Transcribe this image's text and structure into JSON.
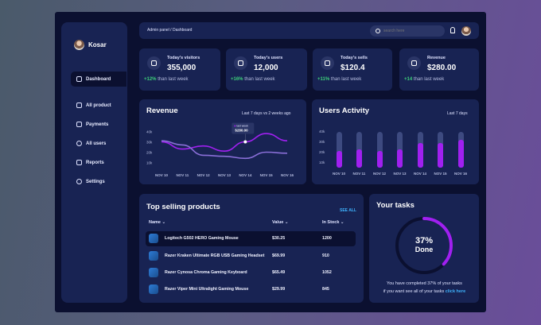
{
  "user": {
    "name": "Kosar"
  },
  "sidebar": {
    "items": [
      {
        "label": "Dashboard",
        "icon": "grid-icon",
        "active": true
      },
      {
        "label": "All product",
        "icon": "box-icon"
      },
      {
        "label": "Payments",
        "icon": "wallet-icon"
      },
      {
        "label": "All users",
        "icon": "users-icon"
      },
      {
        "label": "Reports",
        "icon": "flag-icon"
      },
      {
        "label": "Settings",
        "icon": "gear-icon"
      }
    ]
  },
  "topbar": {
    "breadcrumb": "Admin panel / Dashboard",
    "search_placeholder": "search here"
  },
  "stats": [
    {
      "label": "Today's visitors",
      "value": "355,000",
      "delta": "+12%",
      "delta_text": "than last week",
      "icon": "eye-icon"
    },
    {
      "label": "Today's users",
      "value": "12,000",
      "delta": "+16%",
      "delta_text": "than last week",
      "icon": "user-icon"
    },
    {
      "label": "Today's sells",
      "value": "$120.4",
      "delta": "+11%",
      "delta_text": "than last week",
      "icon": "cart-icon"
    },
    {
      "label": "Revenue",
      "value": "$280.00",
      "delta": "+14",
      "delta_text": "than last week",
      "icon": "chart-icon"
    }
  ],
  "revenue": {
    "title": "Revenue",
    "subtitle": "Last 7 days vs 2 weeks ago",
    "tooltip": {
      "label": "last week",
      "value": "$280.00"
    },
    "colors": {
      "current": "#a020f0",
      "previous": "#8a6fd8"
    }
  },
  "activity": {
    "title": "Users Activity",
    "subtitle": "Last 7 days"
  },
  "chart_data": [
    {
      "type": "line",
      "title": "Revenue",
      "categories": [
        "NOV 10",
        "NOV 11",
        "NOV 12",
        "NOV 13",
        "NOV 14",
        "NOV 15",
        "NOV 16"
      ],
      "yticks": [
        "40k",
        "30k",
        "20k",
        "10k"
      ],
      "ylim": [
        5,
        45
      ],
      "series": [
        {
          "name": "last week",
          "values": [
            30,
            23,
            26,
            21,
            30,
            38,
            31
          ]
        },
        {
          "values": [
            31,
            27,
            17,
            16,
            14,
            20,
            19
          ]
        }
      ]
    },
    {
      "type": "bar",
      "title": "Users Activity",
      "categories": [
        "NOV 10",
        "NOV 11",
        "NOV 12",
        "NOV 13",
        "NOV 14",
        "NOV 15",
        "NOV 16"
      ],
      "yticks": [
        "40k",
        "30k",
        "20k",
        "10k"
      ],
      "ylim": [
        5,
        45
      ],
      "max": 40,
      "values": [
        21,
        23,
        21,
        23,
        29,
        29,
        32
      ]
    }
  ],
  "products": {
    "title": "Top selling products",
    "see_all": "SEE ALL",
    "headers": {
      "name": "Name",
      "value": "Value",
      "stock": "In Stock"
    },
    "rows": [
      {
        "name": "Logitech G502 HERO Gaming Mouse",
        "value": "$30.25",
        "stock": "1200"
      },
      {
        "name": "Razer Kraken Ultimate RGB USB Gaming Headset",
        "value": "$69.99",
        "stock": "910"
      },
      {
        "name": "Razer Cynosa Chroma Gaming Keyboard",
        "value": "$65.49",
        "stock": "1052"
      },
      {
        "name": "Razer Viper Mini Ultralight Gaming Mouse",
        "value": "$29.99",
        "stock": "845"
      }
    ]
  },
  "tasks": {
    "title": "Your tasks",
    "percent": 37,
    "percent_label": "37%",
    "done_label": "Done",
    "note1": "You have completed 37% of your tasks",
    "note2": "if you want see all of your tasks",
    "link": "click here"
  }
}
